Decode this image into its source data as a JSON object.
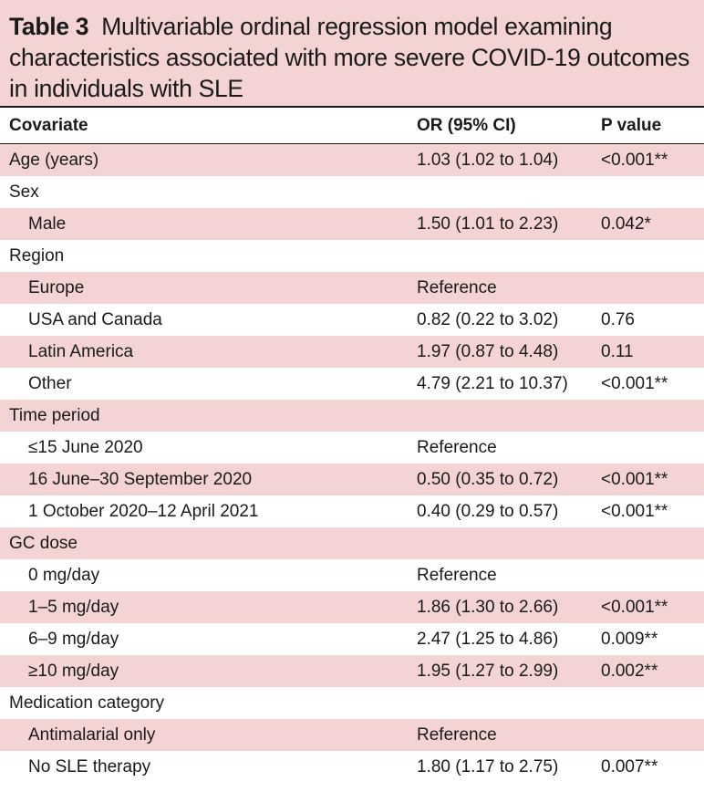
{
  "title": {
    "label": "Table 3",
    "text": "Multivariable ordinal regression model examining characteristics associated with more severe COVID-19 outcomes in individuals with SLE"
  },
  "columns": [
    "Covariate",
    "OR (95% CI)",
    "P value"
  ],
  "rows": [
    {
      "covariate": "Age (years)",
      "or": "1.03 (1.02 to 1.04)",
      "p": "<0.001**",
      "indent": false
    },
    {
      "covariate": "Sex",
      "or": "",
      "p": "",
      "indent": false
    },
    {
      "covariate": "Male",
      "or": "1.50 (1.01 to 2.23)",
      "p": "0.042*",
      "indent": true
    },
    {
      "covariate": "Region",
      "or": "",
      "p": "",
      "indent": false
    },
    {
      "covariate": "Europe",
      "or": "Reference",
      "p": "",
      "indent": true
    },
    {
      "covariate": "USA and Canada",
      "or": "0.82 (0.22 to 3.02)",
      "p": "0.76",
      "indent": true
    },
    {
      "covariate": "Latin America",
      "or": "1.97 (0.87 to 4.48)",
      "p": "0.11",
      "indent": true
    },
    {
      "covariate": "Other",
      "or": "4.79 (2.21 to 10.37)",
      "p": "<0.001**",
      "indent": true
    },
    {
      "covariate": "Time period",
      "or": "",
      "p": "",
      "indent": false
    },
    {
      "covariate": "≤15 June 2020",
      "or": "Reference",
      "p": "",
      "indent": true
    },
    {
      "covariate": "16 June–30 September 2020",
      "or": "0.50 (0.35 to 0.72)",
      "p": "<0.001**",
      "indent": true
    },
    {
      "covariate": "1 October 2020–12 April 2021",
      "or": "0.40 (0.29 to 0.57)",
      "p": "<0.001**",
      "indent": true
    },
    {
      "covariate": "GC dose",
      "or": "",
      "p": "",
      "indent": false
    },
    {
      "covariate": "0 mg/day",
      "or": "Reference",
      "p": "",
      "indent": true
    },
    {
      "covariate": "1–5 mg/day",
      "or": "1.86 (1.30 to 2.66)",
      "p": "<0.001**",
      "indent": true
    },
    {
      "covariate": "6–9 mg/day",
      "or": "2.47 (1.25 to 4.86)",
      "p": "0.009**",
      "indent": true
    },
    {
      "covariate": "≥10 mg/day",
      "or": "1.95 (1.27 to 2.99)",
      "p": "0.002**",
      "indent": true
    },
    {
      "covariate": "Medication category",
      "or": "",
      "p": "",
      "indent": false
    },
    {
      "covariate": "Antimalarial only",
      "or": "Reference",
      "p": "",
      "indent": true
    },
    {
      "covariate": "No SLE therapy",
      "or": "1.80 (1.17 to 2.75)",
      "p": "0.007**",
      "indent": true
    }
  ],
  "colors": {
    "shade": "#f3d3d3",
    "text": "#1a1a1a"
  }
}
